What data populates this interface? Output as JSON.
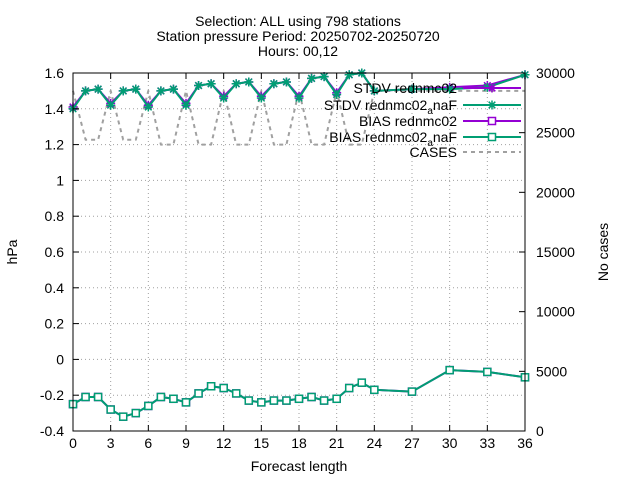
{
  "chart_data": {
    "type": "line",
    "title_lines": [
      "Selection: ALL using   798 stations",
      "Station pressure   Period: 20250702-20250720",
      "Hours: 00,12"
    ],
    "xlabel": "Forecast length",
    "ylabel": "hPa",
    "y2label": "No cases",
    "xlim": [
      0,
      36
    ],
    "ylim": [
      -0.4,
      1.6
    ],
    "y2lim": [
      0,
      30000
    ],
    "xticks": [
      0,
      3,
      6,
      9,
      12,
      15,
      18,
      21,
      24,
      27,
      30,
      33,
      36
    ],
    "yticks": [
      -0.4,
      -0.2,
      0,
      0.2,
      0.4,
      0.6,
      0.8,
      1,
      1.2,
      1.4,
      1.6
    ],
    "ytick_labels": [
      "-0.4",
      "-0.2",
      "0",
      "0.2",
      "0.4",
      "0.6",
      "0.8",
      "1",
      "1.2",
      "1.4",
      "1.6"
    ],
    "y2ticks": [
      0,
      5000,
      10000,
      15000,
      20000,
      25000,
      30000
    ],
    "grid": true,
    "legend_position": "top-right",
    "x": [
      0,
      1,
      2,
      3,
      4,
      5,
      6,
      7,
      8,
      9,
      10,
      11,
      12,
      13,
      14,
      15,
      16,
      17,
      18,
      19,
      20,
      21,
      22,
      23,
      24,
      27,
      30,
      33,
      36
    ],
    "series": [
      {
        "name": "STDV rednmc02",
        "color": "#9400d3",
        "marker": "star",
        "axis": "y1",
        "values": [
          1.41,
          1.5,
          1.51,
          1.43,
          1.5,
          1.51,
          1.42,
          1.5,
          1.51,
          1.43,
          1.53,
          1.54,
          1.47,
          1.54,
          1.55,
          1.47,
          1.54,
          1.55,
          1.47,
          1.57,
          1.58,
          1.49,
          1.59,
          1.6,
          1.5,
          1.51,
          1.52,
          1.53,
          1.59
        ]
      },
      {
        "name": "STDV rednmc02_anaF",
        "color": "#009e73",
        "marker": "star",
        "axis": "y1",
        "values": [
          1.4,
          1.5,
          1.51,
          1.42,
          1.5,
          1.51,
          1.41,
          1.5,
          1.51,
          1.42,
          1.53,
          1.54,
          1.46,
          1.54,
          1.55,
          1.46,
          1.54,
          1.55,
          1.46,
          1.57,
          1.58,
          1.48,
          1.59,
          1.6,
          1.5,
          1.51,
          1.51,
          1.52,
          1.59
        ]
      },
      {
        "name": "BIAS rednmc02",
        "color": "#9400d3",
        "marker": "square",
        "axis": "y1",
        "values": [
          -0.25,
          -0.21,
          -0.21,
          -0.28,
          -0.32,
          -0.3,
          -0.26,
          -0.21,
          -0.22,
          -0.24,
          -0.19,
          -0.15,
          -0.16,
          -0.19,
          -0.23,
          -0.24,
          -0.23,
          -0.23,
          -0.22,
          -0.21,
          -0.23,
          -0.22,
          -0.16,
          -0.13,
          -0.17,
          -0.18,
          -0.06,
          -0.07,
          -0.1
        ]
      },
      {
        "name": "BIAS rednmc02_anaF",
        "color": "#009e73",
        "marker": "square",
        "axis": "y1",
        "values": [
          -0.25,
          -0.21,
          -0.21,
          -0.28,
          -0.32,
          -0.3,
          -0.26,
          -0.21,
          -0.22,
          -0.24,
          -0.19,
          -0.15,
          -0.16,
          -0.19,
          -0.23,
          -0.24,
          -0.23,
          -0.23,
          -0.22,
          -0.21,
          -0.23,
          -0.22,
          -0.16,
          -0.13,
          -0.17,
          -0.18,
          -0.06,
          -0.07,
          -0.1
        ]
      },
      {
        "name": "CASES",
        "color": "#a0a0a0",
        "marker": "none",
        "dashed": true,
        "axis": "y2",
        "values": [
          28500,
          24400,
          24400,
          28500,
          24400,
          24400,
          28500,
          24000,
          24000,
          28500,
          24000,
          24000,
          28500,
          24000,
          24000,
          28500,
          24000,
          24000,
          28500,
          24000,
          24000,
          28500,
          24000,
          24000,
          28500,
          28500,
          28500,
          28500,
          28500
        ]
      }
    ],
    "legend_entries": [
      {
        "text": "STDV rednmc02",
        "series": 0
      },
      {
        "text": "STDV rednmc02",
        "sub": "a",
        "text2": "naF",
        "series": 1
      },
      {
        "text": "BIAS rednmc02",
        "series": 2
      },
      {
        "text": "BIAS rednmc02",
        "sub": "a",
        "text2": "naF",
        "series": 3
      },
      {
        "text": "CASES",
        "series": 4
      }
    ]
  }
}
